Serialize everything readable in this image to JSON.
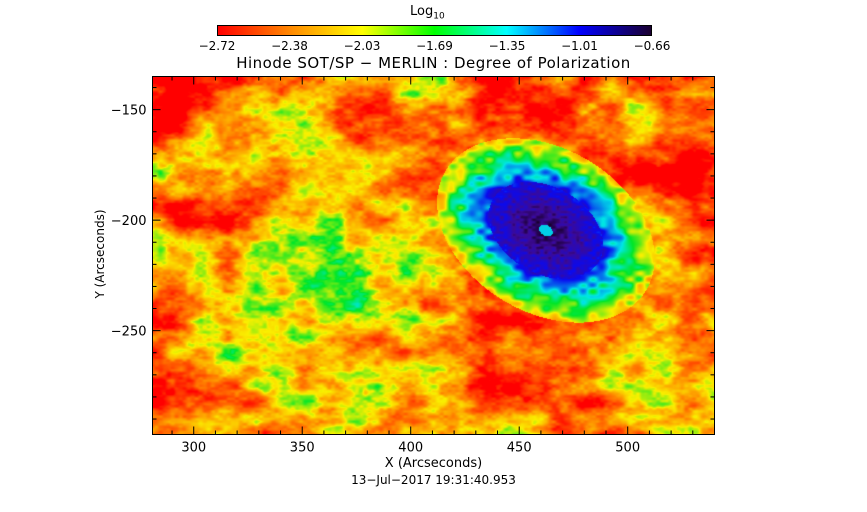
{
  "colorbar": {
    "title": "Log",
    "title_sub": "10",
    "ticks": [
      "-2.72",
      "-2.38",
      "-2.03",
      "-1.69",
      "-1.35",
      "-1.01",
      "-0.66"
    ],
    "colors": [
      "#ff0000",
      "#ff8800",
      "#ffff00",
      "#00ff00",
      "#00ffff",
      "#0000ff",
      "#1a0030"
    ]
  },
  "image": {
    "title": "Hinode SOT/SP − MERLIN : Degree of Polarization",
    "xlabel": "X (Arcseconds)",
    "ylabel": "Y (Arcseconds)",
    "x_ticks": [
      "300",
      "350",
      "400",
      "450",
      "500"
    ],
    "y_ticks": [
      "−150",
      "−200",
      "−250"
    ],
    "timestamp": "13−Jul−2017 19:31:40.953"
  }
}
